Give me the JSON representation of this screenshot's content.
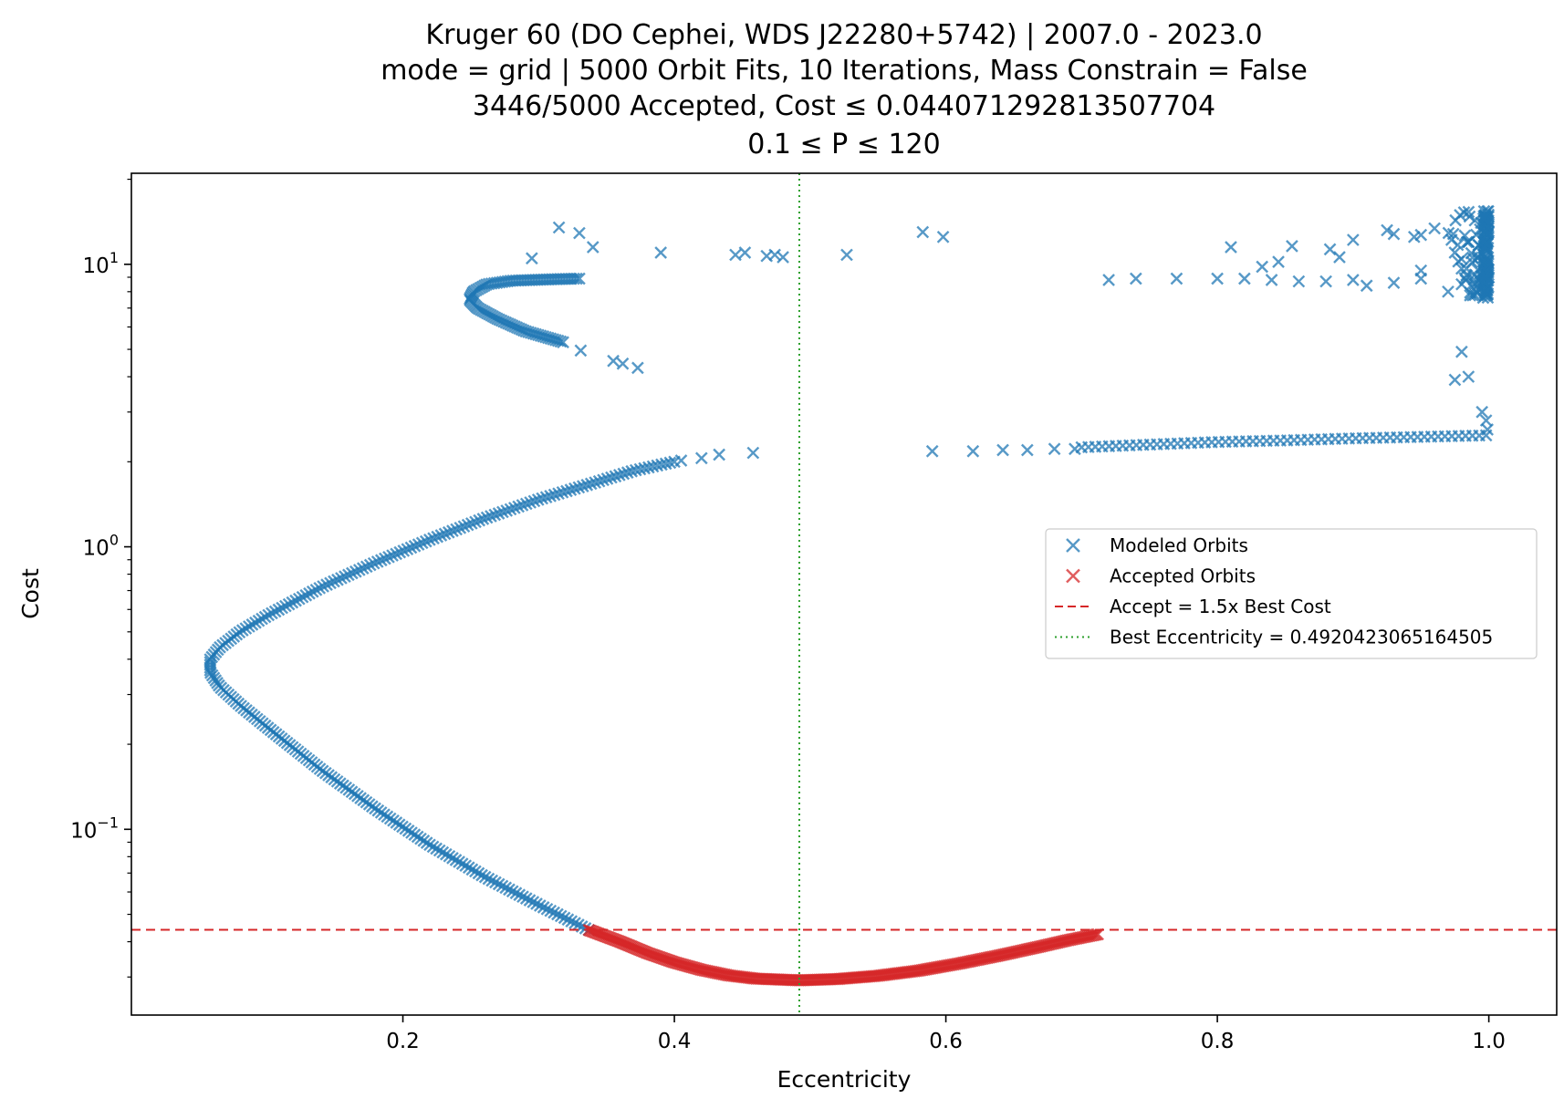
{
  "chart_data": {
    "type": "scatter",
    "title_lines": [
      "Kruger 60 (DO Cephei, WDS J22280+5742) | 2007.0 - 2023.0",
      "mode = grid | 5000 Orbit Fits, 10 Iterations, Mass Constrain = False",
      "3446/5000 Accepted, Cost ≤ 0.044071292813507704",
      "0.1 ≤ P ≤ 120"
    ],
    "xlabel": "Eccentricity",
    "ylabel": "Cost",
    "xlim": [
      0.0,
      1.05
    ],
    "ylim": [
      0.022,
      21
    ],
    "yscale": "log",
    "x_ticks": [
      0.2,
      0.4,
      0.6,
      0.8,
      1.0
    ],
    "x_tick_labels": [
      "0.2",
      "0.4",
      "0.6",
      "0.8",
      "1.0"
    ],
    "y_ticks": [
      0.1,
      1,
      10
    ],
    "y_tick_labels": [
      {
        "base": "10",
        "exp": "−1"
      },
      {
        "base": "10",
        "exp": "0"
      },
      {
        "base": "10",
        "exp": "1"
      }
    ],
    "grid": false,
    "legend_position": "center-right",
    "colors": {
      "modeled": "#1f77b4",
      "accepted": "#d62728",
      "accept_line": "#d62728",
      "best_line": "#2ca02c"
    },
    "legend": [
      {
        "key": "modeled",
        "label": "Modeled Orbits",
        "marker": "x"
      },
      {
        "key": "accepted",
        "label": "Accepted Orbits",
        "marker": "x"
      },
      {
        "key": "accept_line",
        "label": "Accept = 1.5x Best Cost",
        "marker": "dashed-line"
      },
      {
        "key": "best_line",
        "label": "Best Eccentricity = 0.4920423065164505",
        "marker": "dotted-line"
      }
    ],
    "accept_threshold": 0.044071292813507704,
    "best_eccentricity": 0.4920423065164505,
    "series": [
      {
        "key": "modeled",
        "curves": [
          {
            "points": [
              [
                0.337,
                0.044
              ],
              [
                0.3,
                0.054
              ],
              [
                0.26,
                0.068
              ],
              [
                0.22,
                0.088
              ],
              [
                0.18,
                0.118
              ],
              [
                0.14,
                0.162
              ],
              [
                0.1,
                0.23
              ],
              [
                0.08,
                0.275
              ],
              [
                0.065,
                0.32
              ],
              [
                0.058,
                0.36
              ],
              [
                0.058,
                0.4
              ],
              [
                0.065,
                0.44
              ],
              [
                0.08,
                0.5
              ],
              [
                0.1,
                0.57
              ],
              [
                0.14,
                0.72
              ],
              [
                0.18,
                0.88
              ],
              [
                0.22,
                1.06
              ],
              [
                0.26,
                1.26
              ],
              [
                0.3,
                1.47
              ],
              [
                0.34,
                1.68
              ],
              [
                0.37,
                1.86
              ],
              [
                0.4,
                2.0
              ]
            ],
            "density": 260
          },
          {
            "points": [
              [
                0.318,
                5.3
              ],
              [
                0.29,
                5.8
              ],
              [
                0.27,
                6.4
              ],
              [
                0.255,
                7.0
              ],
              [
                0.249,
                7.5
              ],
              [
                0.252,
                8.0
              ],
              [
                0.262,
                8.5
              ],
              [
                0.28,
                8.75
              ],
              [
                0.31,
                8.85
              ],
              [
                0.33,
                8.9
              ]
            ],
            "density": 90
          },
          {
            "points": [
              [
                0.7,
                2.25
              ],
              [
                0.75,
                2.3
              ],
              [
                0.8,
                2.35
              ],
              [
                0.85,
                2.38
              ],
              [
                0.9,
                2.42
              ],
              [
                0.95,
                2.45
              ],
              [
                0.998,
                2.48
              ]
            ],
            "density": 60
          }
        ],
        "points": [
          [
            0.405,
            2.02
          ],
          [
            0.42,
            2.06
          ],
          [
            0.433,
            2.12
          ],
          [
            0.458,
            2.15
          ],
          [
            0.59,
            2.18
          ],
          [
            0.62,
            2.18
          ],
          [
            0.642,
            2.2
          ],
          [
            0.66,
            2.2
          ],
          [
            0.68,
            2.22
          ],
          [
            0.695,
            2.22
          ],
          [
            0.331,
            4.95
          ],
          [
            0.355,
            4.55
          ],
          [
            0.362,
            4.45
          ],
          [
            0.373,
            4.3
          ],
          [
            0.295,
            10.5
          ],
          [
            0.33,
            12.9
          ],
          [
            0.315,
            13.5
          ],
          [
            0.34,
            11.5
          ],
          [
            0.39,
            11.0
          ],
          [
            0.445,
            10.8
          ],
          [
            0.452,
            11.0
          ],
          [
            0.468,
            10.7
          ],
          [
            0.474,
            10.8
          ],
          [
            0.48,
            10.6
          ],
          [
            0.527,
            10.8
          ],
          [
            0.583,
            13.0
          ],
          [
            0.598,
            12.5
          ],
          [
            0.72,
            8.8
          ],
          [
            0.74,
            8.9
          ],
          [
            0.77,
            8.9
          ],
          [
            0.8,
            8.9
          ],
          [
            0.82,
            8.9
          ],
          [
            0.84,
            8.8
          ],
          [
            0.86,
            8.7
          ],
          [
            0.88,
            8.7
          ],
          [
            0.9,
            8.8
          ],
          [
            0.91,
            8.4
          ],
          [
            0.93,
            8.6
          ],
          [
            0.95,
            8.9
          ],
          [
            0.81,
            11.5
          ],
          [
            0.833,
            9.8
          ],
          [
            0.845,
            10.2
          ],
          [
            0.855,
            11.6
          ],
          [
            0.883,
            11.3
          ],
          [
            0.89,
            10.6
          ],
          [
            0.9,
            12.2
          ],
          [
            0.925,
            13.2
          ],
          [
            0.93,
            12.8
          ],
          [
            0.945,
            12.5
          ],
          [
            0.95,
            12.7
          ],
          [
            0.96,
            13.4
          ],
          [
            0.95,
            9.5
          ],
          [
            0.97,
            8.0
          ],
          [
            0.98,
            8.5
          ],
          [
            0.993,
            8.8
          ],
          [
            0.985,
            12.0
          ],
          [
            0.985,
            4.0
          ],
          [
            0.975,
            3.9
          ],
          [
            0.98,
            4.9
          ],
          [
            0.995,
            3.0
          ],
          [
            0.998,
            2.8
          ],
          [
            0.999,
            2.6
          ]
        ],
        "cluster": {
          "x_range": [
            0.962,
            1.0
          ],
          "y_range": [
            7.6,
            15.5
          ],
          "count": 170
        }
      },
      {
        "key": "accepted",
        "curves": [
          {
            "points": [
              [
                0.337,
                0.044
              ],
              [
                0.36,
                0.04
              ],
              [
                0.38,
                0.0365
              ],
              [
                0.4,
                0.0338
              ],
              [
                0.42,
                0.0318
              ],
              [
                0.44,
                0.0304
              ],
              [
                0.46,
                0.0296
              ],
              [
                0.492,
                0.0292
              ],
              [
                0.52,
                0.0295
              ],
              [
                0.55,
                0.0303
              ],
              [
                0.58,
                0.0316
              ],
              [
                0.61,
                0.0335
              ],
              [
                0.64,
                0.0358
              ],
              [
                0.67,
                0.0385
              ],
              [
                0.69,
                0.0405
              ],
              [
                0.712,
                0.0425
              ]
            ],
            "density": 320
          }
        ]
      }
    ]
  }
}
